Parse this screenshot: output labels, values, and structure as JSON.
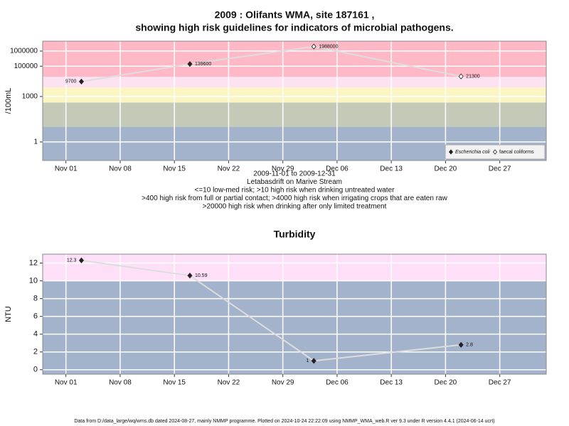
{
  "chart_data": [
    {
      "type": "line",
      "title": [
        "2009 : Olifants WMA, site 187161 ,",
        "showing high risk guidelines for indicators of microbial pathogens."
      ],
      "ylabel": "/100mL",
      "yscale": "log",
      "ylim": [
        0.06,
        4500000
      ],
      "yticks": [
        1,
        1000,
        100000,
        1000000
      ],
      "xlim": [
        "2009-10-29",
        "2010-01-02"
      ],
      "xticks": [
        {
          "value": "2009-11-01",
          "label": "Nov 01"
        },
        {
          "value": "2009-11-08",
          "label": "Nov 08"
        },
        {
          "value": "2009-11-15",
          "label": "Nov 15"
        },
        {
          "value": "2009-11-22",
          "label": "Nov 22"
        },
        {
          "value": "2009-11-29",
          "label": "Nov 29"
        },
        {
          "value": "2009-12-06",
          "label": "Dec 06"
        },
        {
          "value": "2009-12-13",
          "label": "Dec 13"
        },
        {
          "value": "2009-12-20",
          "label": "Dec 20"
        },
        {
          "value": "2009-12-27",
          "label": "Dec 27"
        }
      ],
      "bands": [
        {
          "to": 10,
          "color": "#a3b3cc"
        },
        {
          "from": 10,
          "to": 400,
          "color": "#c3cab8"
        },
        {
          "from": 400,
          "to": 4000,
          "color": "#fbf5c4"
        },
        {
          "from": 4000,
          "to": 20000,
          "color": "#fde2f2"
        },
        {
          "from": 20000,
          "color": "#ffb9c6"
        }
      ],
      "line_color": "#dddddd",
      "grid": true,
      "legend": "bottom-right",
      "series": [
        {
          "name": "Escherichia coli",
          "color": "#222222",
          "marker": "filled",
          "x": [
            "2009-11-03",
            "2009-11-17"
          ],
          "values": [
            9700,
            139600
          ]
        },
        {
          "name": "faecal coliforms",
          "color": "#222222",
          "marker": "open",
          "x": [
            "2009-12-03",
            "2009-12-22"
          ],
          "values": [
            1988000,
            21300
          ]
        }
      ],
      "notes": [
        "2009-11-01 to 2009-12-31",
        "Letabasdrift on Marive Stream",
        "<=10 low-med risk; >10 high risk when drinking untreated water",
        ">400 high risk from full or partial contact; >4000 high risk when irrigating crops that are eaten raw",
        ">20000 high risk when drinking after only limited treatment"
      ]
    },
    {
      "type": "line",
      "title": [
        "Turbidity"
      ],
      "ylabel": "NTU",
      "ylim": [
        -0.5,
        13
      ],
      "yticks": [
        0,
        2,
        4,
        6,
        8,
        10,
        12
      ],
      "xlim": [
        "2009-10-29",
        "2010-01-02"
      ],
      "xticks": [
        {
          "value": "2009-11-01",
          "label": "Nov 01"
        },
        {
          "value": "2009-11-08",
          "label": "Nov 08"
        },
        {
          "value": "2009-11-15",
          "label": "Nov 15"
        },
        {
          "value": "2009-11-22",
          "label": "Nov 22"
        },
        {
          "value": "2009-11-29",
          "label": "Nov 29"
        },
        {
          "value": "2009-12-06",
          "label": "Dec 06"
        },
        {
          "value": "2009-12-13",
          "label": "Dec 13"
        },
        {
          "value": "2009-12-20",
          "label": "Dec 20"
        },
        {
          "value": "2009-12-27",
          "label": "Dec 27"
        }
      ],
      "bands": [
        {
          "to": 10,
          "color": "#a3b3cc"
        },
        {
          "from": 10,
          "color": "#fde0f8"
        }
      ],
      "line_color": "#dddddd",
      "grid": true,
      "series": [
        {
          "color": "#222222",
          "marker": "filled",
          "x": [
            "2009-11-03",
            "2009-11-17",
            "2009-12-03",
            "2009-12-22"
          ],
          "values": [
            12.3,
            10.59,
            1,
            2.8
          ]
        }
      ]
    }
  ],
  "footer": "Data from D:/data_large/wq/wms.db dated 2024-08-27, mainly NMMP programme. Plotted on 2024-10-24 22:22:09 using NMMP_WMA_web.R ver 9.3 under R version 4.4.1 (2024-06-14 ucrt)"
}
